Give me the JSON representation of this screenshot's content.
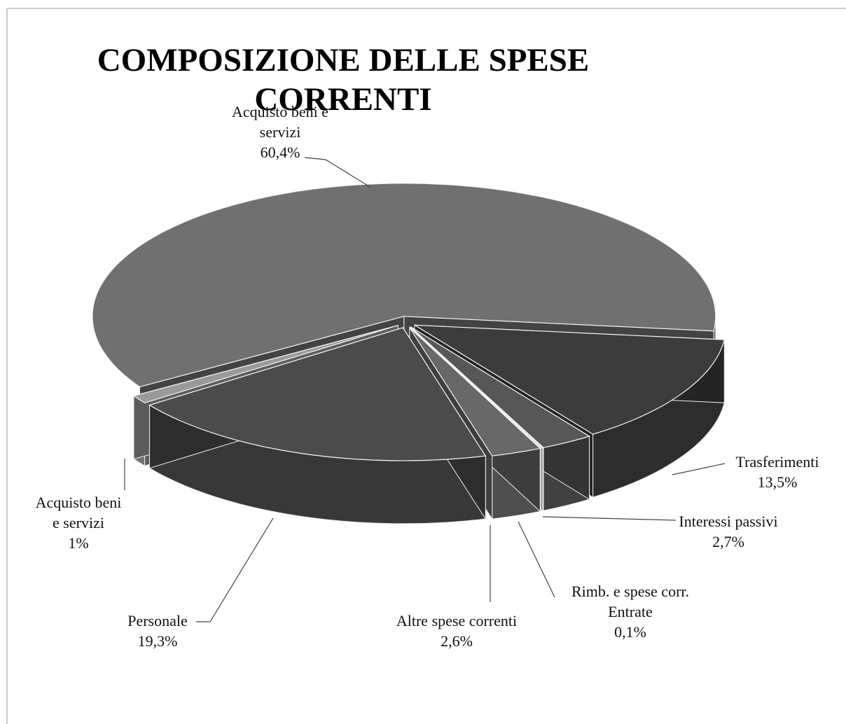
{
  "chart_data": {
    "type": "pie3d",
    "title": "COMPOSIZIONE DELLE SPESE CORRENTI",
    "categories": [
      "Acquisto beni e servizi",
      "Trasferimenti",
      "Interessi passivi",
      "Rimb. e spese corr. Entrate",
      "Altre spese correnti",
      "Personale",
      "Acquisto beni e servizi"
    ],
    "values": [
      60.4,
      13.5,
      2.7,
      0.1,
      2.6,
      19.3,
      1
    ],
    "value_labels": [
      "60,4%",
      "13,5%",
      "2,7%",
      "0,1%",
      "2,6%",
      "19,3%",
      "1%"
    ],
    "colors": [
      "#707070",
      "#3c3c3c",
      "#575757",
      "#c4c4c4",
      "#686868",
      "#4b4b4b",
      "#9a9a9a"
    ]
  }
}
